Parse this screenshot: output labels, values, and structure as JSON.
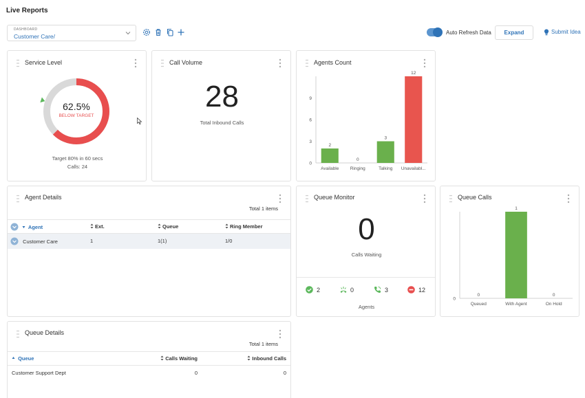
{
  "page": {
    "title": "Live Reports"
  },
  "dashboard_select": {
    "label": "DASHBOARD",
    "value": "Customer Care/"
  },
  "toolbar": {
    "auto_refresh_label": "Auto Refresh Data",
    "expand_label": "Expand",
    "submit_idea_label": "Submit Idea"
  },
  "service_level": {
    "title": "Service Level",
    "percent_text": "62.5%",
    "percent_value": 62.5,
    "status": "BELOW TARGET",
    "target_text": "Target 80% in 60 secs",
    "calls_text": "Calls: 24",
    "target_fraction": 0.8,
    "colors": {
      "ring_good": "#e84e4e",
      "ring_bg": "#d9d9d9",
      "target_marker": "#5cb85c",
      "status": "#e84e4e"
    }
  },
  "call_volume": {
    "title": "Call Volume",
    "value": "28",
    "caption": "Total Inbound Calls"
  },
  "agents_count": {
    "title": "Agents Count",
    "chart_data": {
      "type": "bar",
      "categories": [
        "Available",
        "Ringing",
        "Talking",
        "Unavailabl..."
      ],
      "values": [
        2,
        0,
        3,
        12
      ],
      "ylim": [
        0,
        12
      ],
      "yticks": [
        0,
        3,
        6,
        9
      ],
      "colors": [
        "#6ab04c",
        "#6ab04c",
        "#6ab04c",
        "#e8554e"
      ]
    }
  },
  "agent_details": {
    "title": "Agent Details",
    "total_items": "Total 1 items",
    "columns": [
      "Agent",
      "Ext.",
      "Queue",
      "Ring Member"
    ],
    "rows": [
      [
        "Customer Care",
        "1",
        "1(1)",
        "1/0"
      ]
    ]
  },
  "queue_monitor": {
    "title": "Queue Monitor",
    "value": "0",
    "caption": "Calls Waiting",
    "agents_label": "Agents",
    "stats": [
      {
        "icon": "available-check-icon",
        "value": "2",
        "color": "#5cb85c"
      },
      {
        "icon": "ringing-phone-icon",
        "value": "0",
        "color": "#5cb85c"
      },
      {
        "icon": "talking-phone-icon",
        "value": "3",
        "color": "#5cb85c"
      },
      {
        "icon": "unavailable-minus-icon",
        "value": "12",
        "color": "#e84e4e"
      }
    ]
  },
  "queue_calls": {
    "title": "Queue Calls",
    "chart_data": {
      "type": "bar",
      "categories": [
        "Queued",
        "With Agent",
        "On Hold"
      ],
      "values": [
        0,
        1,
        0
      ],
      "ylim": [
        0,
        1
      ],
      "yticks": [
        0
      ],
      "colors": [
        "#6ab04c",
        "#6ab04c",
        "#6ab04c"
      ]
    }
  },
  "queue_details": {
    "title": "Queue Details",
    "total_items": "Total 1 items",
    "columns": [
      "Queue",
      "Calls Waiting",
      "Inbound Calls"
    ],
    "rows": [
      [
        "Customer Support Dept",
        "0",
        "0"
      ]
    ]
  }
}
